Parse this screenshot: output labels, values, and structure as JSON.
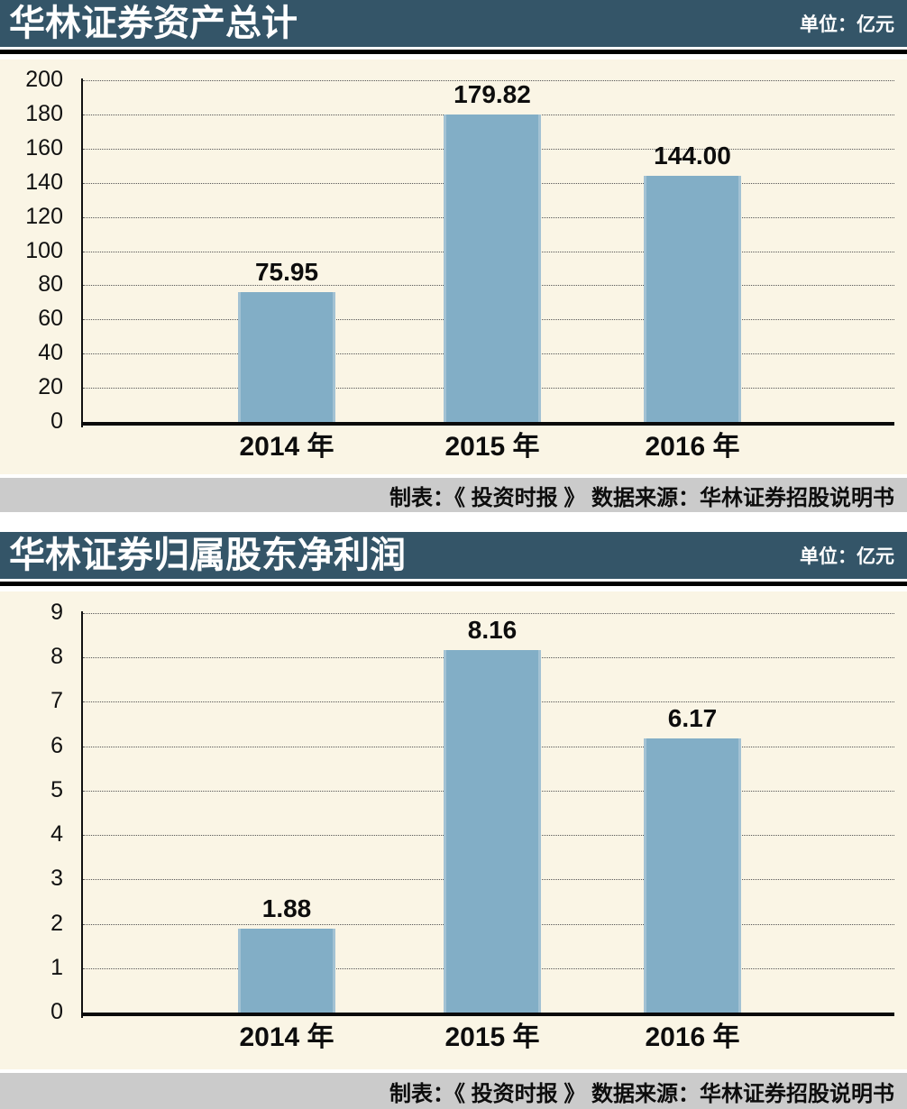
{
  "colors": {
    "header_bg": "#345568",
    "header_text": "#ffffff",
    "plot_bg": "#faf5e5",
    "bar_fill": "#82aec6",
    "bar_edge": "#a3c2d3",
    "footer_bg": "#cbcbcb",
    "grid_line": "#555555",
    "axis_line": "#111111",
    "text": "#111111"
  },
  "chart_data": [
    {
      "type": "bar",
      "title": "华林证券资产总计",
      "unit": "单位：亿元",
      "categories": [
        "2014 年",
        "2015 年",
        "2016 年"
      ],
      "values": [
        75.95,
        179.82,
        144.0
      ],
      "value_labels": [
        "75.95",
        "179.82",
        "144.00"
      ],
      "ylim": [
        0,
        200
      ],
      "ystep": 20,
      "grid": "dotted-horizontal",
      "legend": "none",
      "footer": "制表：《 投资时报 》  数据来源：华林证券招股说明书"
    },
    {
      "type": "bar",
      "title": "华林证券归属股东净利润",
      "unit": "单位：亿元",
      "categories": [
        "2014 年",
        "2015 年",
        "2016 年"
      ],
      "values": [
        1.88,
        8.16,
        6.17
      ],
      "value_labels": [
        "1.88",
        "8.16",
        "6.17"
      ],
      "ylim": [
        0,
        9
      ],
      "ystep": 1,
      "grid": "dotted-horizontal",
      "legend": "none",
      "footer": "制表：《 投资时报 》  数据来源：华林证券招股说明书"
    }
  ]
}
